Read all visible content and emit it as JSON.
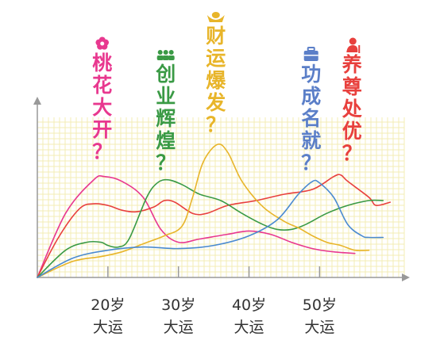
{
  "chart_data": {
    "type": "line",
    "title": "",
    "xlabel": "",
    "ylabel": "",
    "x_ticks": [
      {
        "age": 20,
        "line1": "20岁",
        "line2": "大运"
      },
      {
        "age": 30,
        "line1": "30岁",
        "line2": "大运"
      },
      {
        "age": 40,
        "line1": "40岁",
        "line2": "大运"
      },
      {
        "age": 50,
        "line1": "50岁",
        "line2": "大运"
      }
    ],
    "xlim": [
      10,
      62
    ],
    "ylim": [
      0,
      100
    ],
    "grid": true,
    "grid_color": "#f3ecb4",
    "series": [
      {
        "color": "#e8388f",
        "points": [
          [
            10,
            0
          ],
          [
            14,
            40
          ],
          [
            18,
            61
          ],
          [
            19.5,
            63
          ],
          [
            22,
            60
          ],
          [
            25,
            50
          ],
          [
            27.5,
            30
          ],
          [
            30,
            22
          ],
          [
            33,
            24
          ],
          [
            37,
            27
          ],
          [
            40,
            29
          ],
          [
            43,
            27
          ],
          [
            46,
            22
          ],
          [
            49,
            18
          ],
          [
            52,
            16
          ],
          [
            55,
            15
          ]
        ]
      },
      {
        "color": "#e8403d",
        "points": [
          [
            10,
            0
          ],
          [
            13,
            25
          ],
          [
            16,
            43
          ],
          [
            18,
            46
          ],
          [
            20,
            45
          ],
          [
            22,
            42
          ],
          [
            24,
            41
          ],
          [
            26.5,
            44
          ],
          [
            28,
            48
          ],
          [
            29.5,
            47
          ],
          [
            32,
            40
          ],
          [
            34,
            40
          ],
          [
            37,
            45
          ],
          [
            41,
            48
          ],
          [
            45,
            52
          ],
          [
            49,
            55
          ],
          [
            52,
            63
          ],
          [
            53,
            64
          ],
          [
            54,
            60
          ],
          [
            57,
            50
          ],
          [
            58,
            45
          ],
          [
            60,
            47
          ]
        ]
      },
      {
        "color": "#3a9a45",
        "points": [
          [
            10,
            0
          ],
          [
            14,
            17
          ],
          [
            17,
            22
          ],
          [
            19,
            22
          ],
          [
            20,
            20
          ],
          [
            21.5,
            19
          ],
          [
            23,
            24
          ],
          [
            25.5,
            50
          ],
          [
            27,
            59
          ],
          [
            28.5,
            61
          ],
          [
            30.5,
            58
          ],
          [
            33,
            52
          ],
          [
            36,
            48
          ],
          [
            39,
            40
          ],
          [
            42,
            33
          ],
          [
            44,
            30
          ],
          [
            46,
            30
          ],
          [
            48,
            33
          ],
          [
            51,
            40
          ],
          [
            54,
            45
          ],
          [
            57,
            48
          ],
          [
            59,
            48
          ]
        ]
      },
      {
        "color": "#e8b52a",
        "points": [
          [
            10,
            0
          ],
          [
            15,
            10
          ],
          [
            19,
            13
          ],
          [
            22,
            16
          ],
          [
            25,
            21
          ],
          [
            28,
            26
          ],
          [
            30.5,
            32
          ],
          [
            32,
            50
          ],
          [
            33.5,
            72
          ],
          [
            35.5,
            83
          ],
          [
            37,
            78
          ],
          [
            39,
            60
          ],
          [
            42,
            44
          ],
          [
            45,
            35
          ],
          [
            47,
            31
          ],
          [
            49,
            26
          ],
          [
            51,
            22
          ],
          [
            53,
            20
          ],
          [
            55,
            17
          ],
          [
            57,
            17
          ]
        ]
      },
      {
        "color": "#4a8ad0",
        "points": [
          [
            10,
            0
          ],
          [
            15,
            12
          ],
          [
            20,
            17
          ],
          [
            25,
            19
          ],
          [
            30,
            18
          ],
          [
            35,
            20
          ],
          [
            40,
            26
          ],
          [
            44,
            36
          ],
          [
            47,
            52
          ],
          [
            49,
            60
          ],
          [
            50,
            59
          ],
          [
            52,
            50
          ],
          [
            54,
            33
          ],
          [
            56,
            26
          ],
          [
            57,
            25
          ],
          [
            59,
            25
          ]
        ]
      }
    ],
    "annotations": [
      {
        "chars": [
          "桃",
          "花",
          "大",
          "开",
          "？"
        ],
        "color": "#e8388f",
        "icon": "flower-icon",
        "age": 19.2
      },
      {
        "chars": [
          "创",
          "业",
          "辉",
          "煌",
          "？"
        ],
        "color": "#3a9a45",
        "icon": "team-icon",
        "age": 28.2
      },
      {
        "chars": [
          "财",
          "运",
          "爆",
          "发",
          "？"
        ],
        "color": "#e8b52a",
        "icon": "gold-ingot-icon",
        "age": 35.3
      },
      {
        "chars": [
          "功",
          "成",
          "名",
          "就",
          "？"
        ],
        "color": "#5b7fc8",
        "icon": "briefcase-icon",
        "age": 48.8
      },
      {
        "chars": [
          "养",
          "尊",
          "处",
          "优",
          "？"
        ],
        "color": "#e8403d",
        "icon": "elder-icon",
        "age": 54.6
      }
    ]
  }
}
